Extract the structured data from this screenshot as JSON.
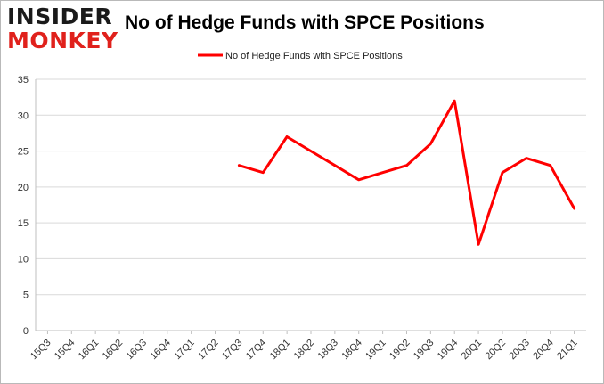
{
  "logo": {
    "line1": "INSIDER",
    "line2": "MONKEY"
  },
  "chart_data": {
    "type": "line",
    "title": "No of Hedge Funds with SPCE Positions",
    "xlabel": "",
    "ylabel": "",
    "categories": [
      "15Q3",
      "15Q4",
      "16Q1",
      "16Q2",
      "16Q3",
      "16Q4",
      "17Q1",
      "17Q2",
      "17Q3",
      "17Q4",
      "18Q1",
      "18Q2",
      "18Q3",
      "18Q4",
      "19Q1",
      "19Q2",
      "19Q3",
      "19Q4",
      "20Q1",
      "20Q2",
      "20Q3",
      "20Q4",
      "21Q1"
    ],
    "series": [
      {
        "name": "No of Hedge Funds with SPCE Positions",
        "color": "#ff0000",
        "values": [
          null,
          null,
          null,
          null,
          null,
          null,
          null,
          null,
          23,
          22,
          27,
          25,
          23,
          21,
          22,
          23,
          26,
          32,
          12,
          22,
          24,
          23,
          17
        ]
      }
    ],
    "ylim": [
      0,
      35
    ],
    "yticks": [
      0,
      5,
      10,
      15,
      20,
      25,
      30,
      35
    ],
    "grid": true,
    "legend_position": "top-center"
  }
}
